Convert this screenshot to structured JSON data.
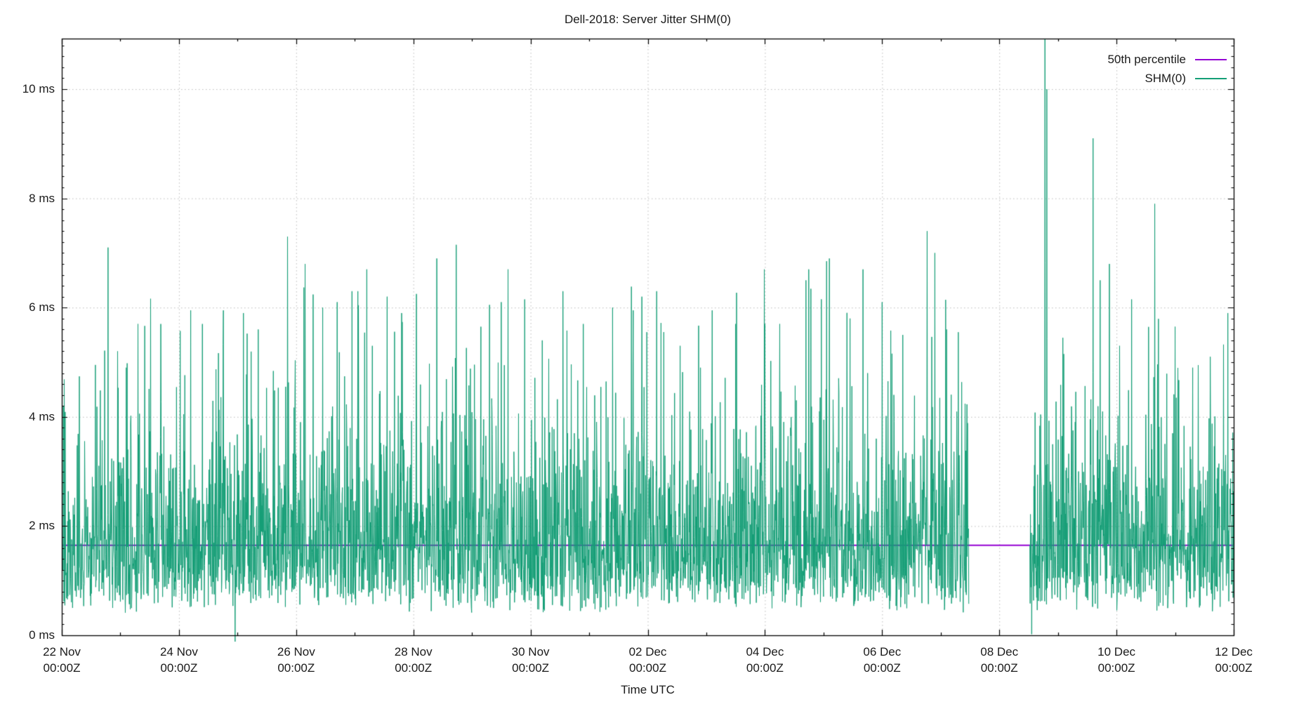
{
  "page": {
    "background": "#ffffff"
  },
  "chart_data": {
    "type": "line",
    "title": "Dell-2018: Server Jitter SHM(0)",
    "xlabel": "Time UTC",
    "y_unit": "ms",
    "grid": "dotted",
    "legend_position": "top-right-inside",
    "ylim_ms": [
      0,
      10.93
    ],
    "xlim_days": [
      0,
      20
    ],
    "y_ticks": [
      {
        "label": "0 ms",
        "value": 0
      },
      {
        "label": "2 ms",
        "value": 2
      },
      {
        "label": "4 ms",
        "value": 4
      },
      {
        "label": "6 ms",
        "value": 6
      },
      {
        "label": "8 ms",
        "value": 8
      },
      {
        "label": "10 ms",
        "value": 10
      }
    ],
    "x_ticks": [
      {
        "date": "22 Nov",
        "time": "00:00Z",
        "day": 0
      },
      {
        "date": "24 Nov",
        "time": "00:00Z",
        "day": 2
      },
      {
        "date": "26 Nov",
        "time": "00:00Z",
        "day": 4
      },
      {
        "date": "28 Nov",
        "time": "00:00Z",
        "day": 6
      },
      {
        "date": "30 Nov",
        "time": "00:00Z",
        "day": 8
      },
      {
        "date": "02 Dec",
        "time": "00:00Z",
        "day": 10
      },
      {
        "date": "04 Dec",
        "time": "00:00Z",
        "day": 12
      },
      {
        "date": "06 Dec",
        "time": "00:00Z",
        "day": 14
      },
      {
        "date": "08 Dec",
        "time": "00:00Z",
        "day": 16
      },
      {
        "date": "10 Dec",
        "time": "00:00Z",
        "day": 18
      },
      {
        "date": "12 Dec",
        "time": "00:00Z",
        "day": 20
      }
    ],
    "series": [
      {
        "name": "50th percentile",
        "color": "#9400d3",
        "type": "constant-line",
        "value_ms": 1.65
      },
      {
        "name": "SHM(0)",
        "color": "#149e76",
        "type": "noisy-jitter",
        "median_ms": 1.65,
        "noise_floor_ms": 0.4,
        "erlang_scale_ms": 0.74,
        "noise_cap_ms": 6.7,
        "samples": 3800,
        "seed": 987654321,
        "gap_days": [
          15.48,
          16.52
        ],
        "spikes_day_ms": [
          [
            0.79,
            7.1
          ],
          [
            0.95,
            5.2
          ],
          [
            1.1,
            4.9
          ],
          [
            1.3,
            5.7
          ],
          [
            1.69,
            5.7
          ],
          [
            2.2,
            5.95
          ],
          [
            2.4,
            5.7
          ],
          [
            2.76,
            5.95
          ],
          [
            2.96,
            -0.12
          ],
          [
            3.1,
            5.9
          ],
          [
            3.35,
            5.6
          ],
          [
            3.85,
            7.3
          ],
          [
            4.15,
            6.8
          ],
          [
            4.45,
            6.0
          ],
          [
            4.7,
            6.1
          ],
          [
            4.95,
            6.3
          ],
          [
            5.05,
            6.3
          ],
          [
            5.3,
            5.3
          ],
          [
            5.55,
            6.2
          ],
          [
            5.8,
            5.9
          ],
          [
            6.05,
            6.25
          ],
          [
            6.4,
            6.9
          ],
          [
            6.73,
            7.15
          ],
          [
            7.15,
            5.65
          ],
          [
            7.3,
            6.05
          ],
          [
            7.5,
            6.1
          ],
          [
            7.9,
            6.15
          ],
          [
            8.2,
            5.4
          ],
          [
            8.55,
            6.3
          ],
          [
            8.9,
            5.7
          ],
          [
            9.4,
            6.0
          ],
          [
            9.75,
            5.95
          ],
          [
            9.9,
            6.2
          ],
          [
            10.15,
            6.3
          ],
          [
            10.55,
            5.3
          ],
          [
            10.9,
            4.9
          ],
          [
            11.1,
            5.95
          ],
          [
            11.5,
            5.7
          ],
          [
            12.0,
            5.7
          ],
          [
            12.25,
            5.7
          ],
          [
            12.7,
            6.5
          ],
          [
            13.05,
            6.85
          ],
          [
            13.1,
            6.9
          ],
          [
            13.45,
            5.8
          ],
          [
            13.75,
            4.8
          ],
          [
            14.0,
            6.1
          ],
          [
            14.35,
            5.5
          ],
          [
            14.77,
            7.4
          ],
          [
            14.9,
            7.0
          ],
          [
            15.1,
            5.6
          ],
          [
            15.3,
            5.55
          ],
          [
            16.55,
            0.02
          ],
          [
            16.78,
            11.2
          ],
          [
            16.81,
            10.0
          ],
          [
            17.1,
            5.15
          ],
          [
            17.6,
            9.1
          ],
          [
            17.72,
            6.5
          ],
          [
            17.88,
            6.8
          ],
          [
            18.05,
            5.3
          ],
          [
            18.26,
            6.15
          ],
          [
            18.65,
            7.9
          ],
          [
            19.0,
            5.65
          ],
          [
            19.3,
            4.9
          ],
          [
            19.6,
            5.1
          ],
          [
            19.9,
            5.9
          ]
        ]
      }
    ],
    "colors": {
      "axis": "#000000",
      "grid": "#bcbcbc",
      "text": "#1a1a1a"
    }
  }
}
